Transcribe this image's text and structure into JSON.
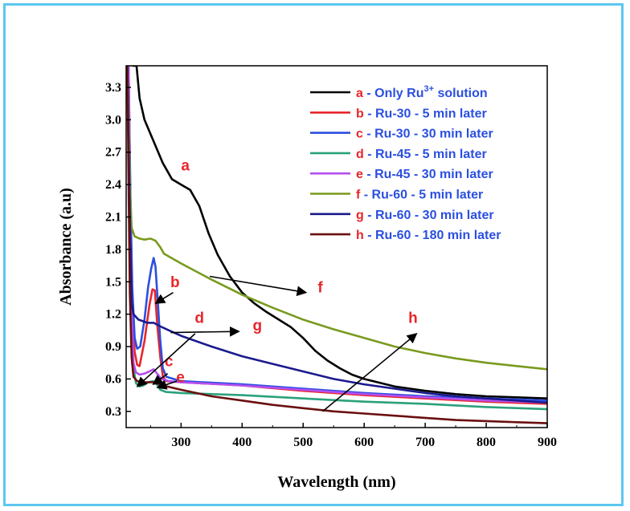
{
  "chart_data": {
    "type": "line",
    "xlabel": "Wavelength (nm)",
    "ylabel": "Absorbance (a.u)",
    "xlim": [
      210,
      900
    ],
    "ylim": [
      0.15,
      3.5
    ],
    "xticks": [
      "300",
      "400",
      "500",
      "600",
      "700",
      "800",
      "900"
    ],
    "yticks": [
      "0.3",
      "0.6",
      "0.9",
      "1.2",
      "1.5",
      "1.8",
      "2.1",
      "2.4",
      "2.7",
      "3.0",
      "3.3"
    ],
    "legend_position": "top-right",
    "letter_color": "#e8262b",
    "series": [
      {
        "id": "a",
        "letter": "a",
        "name": " - Only Ru",
        "sup": "3+",
        "name_suffix": " solution",
        "color": "#000000",
        "text_color": "#2b4fe0",
        "points": [
          [
            220,
            3.5
          ],
          [
            227,
            3.5
          ],
          [
            232,
            3.2
          ],
          [
            240,
            3.0
          ],
          [
            255,
            2.8
          ],
          [
            270,
            2.6
          ],
          [
            285,
            2.45
          ],
          [
            300,
            2.4
          ],
          [
            315,
            2.35
          ],
          [
            330,
            2.2
          ],
          [
            345,
            1.95
          ],
          [
            360,
            1.75
          ],
          [
            380,
            1.55
          ],
          [
            400,
            1.4
          ],
          [
            420,
            1.3
          ],
          [
            440,
            1.22
          ],
          [
            460,
            1.15
          ],
          [
            480,
            1.08
          ],
          [
            500,
            0.98
          ],
          [
            520,
            0.86
          ],
          [
            540,
            0.77
          ],
          [
            560,
            0.7
          ],
          [
            580,
            0.64
          ],
          [
            600,
            0.6
          ],
          [
            650,
            0.53
          ],
          [
            700,
            0.49
          ],
          [
            750,
            0.46
          ],
          [
            800,
            0.44
          ],
          [
            850,
            0.43
          ],
          [
            900,
            0.42
          ]
        ]
      },
      {
        "id": "b",
        "letter": "b",
        "name": " - Ru-30 - 5 min later",
        "color": "#e8262b",
        "text_color": "#2b4fe0",
        "points": [
          [
            214,
            3.5
          ],
          [
            217,
            2.2
          ],
          [
            220,
            1.3
          ],
          [
            224,
            0.85
          ],
          [
            228,
            0.73
          ],
          [
            232,
            0.72
          ],
          [
            240,
            0.95
          ],
          [
            248,
            1.28
          ],
          [
            253,
            1.43
          ],
          [
            257,
            1.42
          ],
          [
            261,
            1.1
          ],
          [
            266,
            0.8
          ],
          [
            270,
            0.63
          ],
          [
            275,
            0.58
          ],
          [
            300,
            0.57
          ],
          [
            400,
            0.54
          ],
          [
            500,
            0.49
          ],
          [
            600,
            0.45
          ],
          [
            700,
            0.42
          ],
          [
            800,
            0.39
          ],
          [
            900,
            0.37
          ]
        ]
      },
      {
        "id": "c",
        "letter": "c",
        "name": " - Ru-30 - 30 min later",
        "color": "#2b4fe0",
        "text_color": "#2b4fe0",
        "points": [
          [
            214,
            3.5
          ],
          [
            217,
            2.3
          ],
          [
            220,
            1.45
          ],
          [
            224,
            0.98
          ],
          [
            228,
            0.88
          ],
          [
            233,
            0.9
          ],
          [
            240,
            1.15
          ],
          [
            246,
            1.45
          ],
          [
            251,
            1.62
          ],
          [
            255,
            1.72
          ],
          [
            258,
            1.64
          ],
          [
            262,
            1.3
          ],
          [
            266,
            0.95
          ],
          [
            270,
            0.7
          ],
          [
            276,
            0.62
          ],
          [
            300,
            0.58
          ],
          [
            400,
            0.55
          ],
          [
            500,
            0.51
          ],
          [
            600,
            0.47
          ],
          [
            700,
            0.44
          ],
          [
            800,
            0.42
          ],
          [
            900,
            0.4
          ]
        ]
      },
      {
        "id": "d",
        "letter": "d",
        "name": " - Ru-45 - 5 min later",
        "color": "#2aa17c",
        "text_color": "#2b4fe0",
        "points": [
          [
            214,
            3.5
          ],
          [
            216,
            2.4
          ],
          [
            219,
            1.2
          ],
          [
            222,
            0.7
          ],
          [
            226,
            0.56
          ],
          [
            232,
            0.53
          ],
          [
            238,
            0.54
          ],
          [
            246,
            0.57
          ],
          [
            254,
            0.58
          ],
          [
            260,
            0.55
          ],
          [
            266,
            0.5
          ],
          [
            275,
            0.48
          ],
          [
            300,
            0.47
          ],
          [
            400,
            0.45
          ],
          [
            500,
            0.42
          ],
          [
            600,
            0.39
          ],
          [
            700,
            0.37
          ],
          [
            800,
            0.34
          ],
          [
            900,
            0.32
          ]
        ]
      },
      {
        "id": "e",
        "letter": "e",
        "name": " - Ru-45 - 30 min later",
        "color": "#b44ef0",
        "text_color": "#2b4fe0",
        "points": [
          [
            214,
            3.5
          ],
          [
            216,
            2.4
          ],
          [
            219,
            1.2
          ],
          [
            222,
            0.75
          ],
          [
            226,
            0.66
          ],
          [
            232,
            0.64
          ],
          [
            240,
            0.65
          ],
          [
            248,
            0.67
          ],
          [
            255,
            0.69
          ],
          [
            262,
            0.64
          ],
          [
            268,
            0.6
          ],
          [
            280,
            0.58
          ],
          [
            300,
            0.57
          ],
          [
            400,
            0.54
          ],
          [
            500,
            0.5
          ],
          [
            600,
            0.46
          ],
          [
            700,
            0.43
          ],
          [
            800,
            0.4
          ],
          [
            900,
            0.38
          ]
        ]
      },
      {
        "id": "f",
        "letter": "f",
        "name": " - Ru-60 - 5 min later",
        "color": "#7a9a1e",
        "text_color": "#2b4fe0",
        "points": [
          [
            212,
            3.5
          ],
          [
            214,
            3.0
          ],
          [
            216,
            2.4
          ],
          [
            219,
            2.0
          ],
          [
            224,
            1.92
          ],
          [
            232,
            1.9
          ],
          [
            240,
            1.89
          ],
          [
            250,
            1.9
          ],
          [
            258,
            1.88
          ],
          [
            266,
            1.82
          ],
          [
            272,
            1.76
          ],
          [
            300,
            1.67
          ],
          [
            350,
            1.52
          ],
          [
            400,
            1.38
          ],
          [
            450,
            1.26
          ],
          [
            500,
            1.15
          ],
          [
            550,
            1.06
          ],
          [
            600,
            0.98
          ],
          [
            650,
            0.9
          ],
          [
            700,
            0.84
          ],
          [
            750,
            0.79
          ],
          [
            800,
            0.75
          ],
          [
            850,
            0.72
          ],
          [
            900,
            0.69
          ]
        ]
      },
      {
        "id": "g",
        "letter": "g",
        "name": " - Ru-60 - 30 min later",
        "color": "#1a1a8e",
        "text_color": "#2b4fe0",
        "points": [
          [
            212,
            3.5
          ],
          [
            214,
            2.8
          ],
          [
            216,
            2.1
          ],
          [
            219,
            1.3
          ],
          [
            222,
            1.2
          ],
          [
            230,
            1.15
          ],
          [
            245,
            1.12
          ],
          [
            255,
            1.12
          ],
          [
            265,
            1.09
          ],
          [
            280,
            1.05
          ],
          [
            300,
            1.0
          ],
          [
            350,
            0.9
          ],
          [
            400,
            0.81
          ],
          [
            450,
            0.74
          ],
          [
            500,
            0.67
          ],
          [
            550,
            0.6
          ],
          [
            600,
            0.55
          ],
          [
            650,
            0.51
          ],
          [
            700,
            0.47
          ],
          [
            750,
            0.44
          ],
          [
            800,
            0.42
          ],
          [
            850,
            0.4
          ],
          [
            900,
            0.38
          ]
        ]
      },
      {
        "id": "h",
        "letter": "h",
        "name": " - Ru-60 - 180 min later",
        "color": "#6b0f0f",
        "text_color": "#2b4fe0",
        "points": [
          [
            212,
            3.5
          ],
          [
            214,
            2.4
          ],
          [
            216,
            1.4
          ],
          [
            219,
            0.8
          ],
          [
            222,
            0.62
          ],
          [
            228,
            0.58
          ],
          [
            240,
            0.57
          ],
          [
            255,
            0.57
          ],
          [
            270,
            0.54
          ],
          [
            300,
            0.5
          ],
          [
            350,
            0.44
          ],
          [
            400,
            0.4
          ],
          [
            450,
            0.36
          ],
          [
            500,
            0.33
          ],
          [
            550,
            0.3
          ],
          [
            600,
            0.28
          ],
          [
            650,
            0.26
          ],
          [
            700,
            0.24
          ],
          [
            750,
            0.22
          ],
          [
            800,
            0.21
          ],
          [
            850,
            0.2
          ],
          [
            900,
            0.19
          ]
        ]
      }
    ],
    "annotations": [
      {
        "label": "a",
        "x": 307,
        "y": 2.53,
        "arrow": false
      },
      {
        "label": "b",
        "x": 290,
        "y": 1.45,
        "arrow": true,
        "tail": [
          287,
          1.4
        ],
        "head": [
          258,
          1.3
        ]
      },
      {
        "label": "c",
        "x": 280,
        "y": 0.72,
        "arrow": true,
        "tail": [
          278,
          0.65
        ],
        "head": [
          254,
          0.55
        ]
      },
      {
        "label": "d",
        "x": 330,
        "y": 1.12,
        "arrow": true,
        "tail": [
          323,
          1.02
        ],
        "head": [
          228,
          0.53
        ]
      },
      {
        "label": "e",
        "x": 299,
        "y": 0.57,
        "arrow": true,
        "tail": [
          293,
          0.58
        ],
        "head": [
          261,
          0.52
        ]
      },
      {
        "label": "f",
        "x": 528,
        "y": 1.4,
        "arrow": true,
        "tail": [
          347,
          1.55
        ],
        "head": [
          505,
          1.4
        ]
      },
      {
        "label": "g",
        "x": 425,
        "y": 1.05,
        "arrow": true,
        "tail": [
          283,
          1.03
        ],
        "head": [
          395,
          1.04
        ]
      },
      {
        "label": "h",
        "x": 680,
        "y": 1.12,
        "arrow": true,
        "tail": [
          532,
          0.3
        ],
        "head": [
          686,
          1.02
        ]
      }
    ]
  }
}
